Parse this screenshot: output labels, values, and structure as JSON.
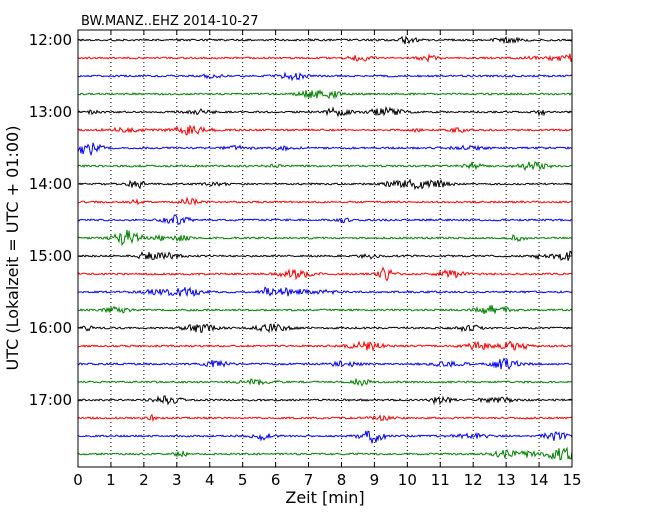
{
  "chart_data": {
    "type": "line",
    "title": "BW.MANZ..EHZ 2014-10-27",
    "xlabel": "Zeit  [min]",
    "ylabel": "UTC (Lokalzeit = UTC + 01:00)",
    "xlim": [
      0,
      15
    ],
    "xticks": [
      "0",
      "1",
      "2",
      "3",
      "4",
      "5",
      "6",
      "7",
      "8",
      "9",
      "10",
      "11",
      "12",
      "13",
      "14",
      "15"
    ],
    "yticks": [
      "12:00",
      "13:00",
      "14:00",
      "15:00",
      "16:00",
      "17:00"
    ],
    "grid": "vertical dotted",
    "trace_interval_minutes": 15,
    "trace_start": "12:00",
    "trace_count": 24,
    "colors": [
      "#000000",
      "#ff0000",
      "#0000ff",
      "#008000"
    ]
  }
}
